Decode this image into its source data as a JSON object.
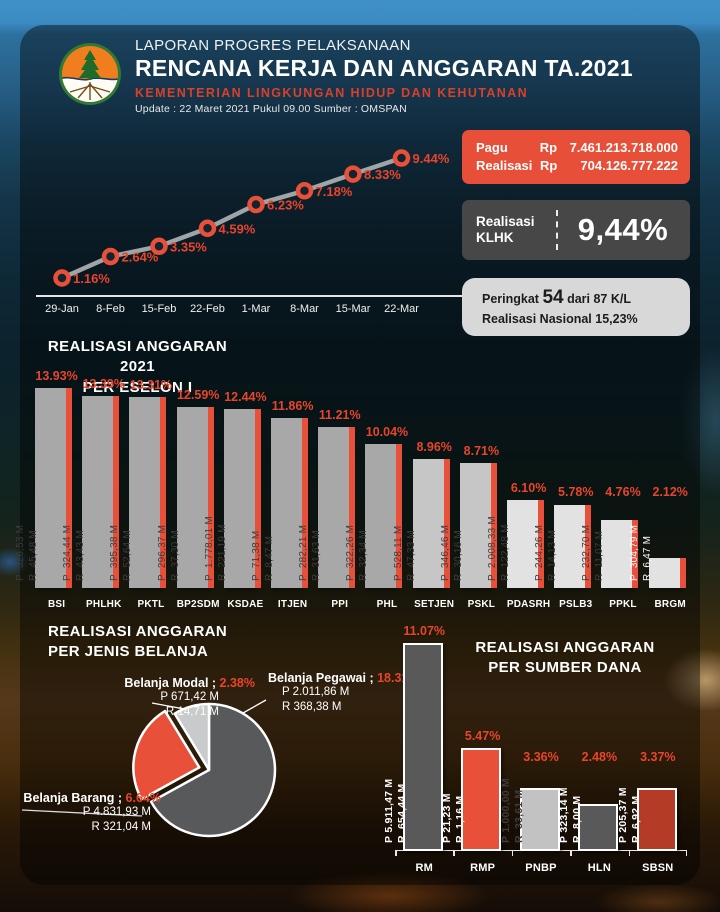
{
  "header": {
    "subtitle": "LAPORAN PROGRES PELAKSANAAN",
    "title": "RENCANA KERJA DAN ANGGARAN TA.2021",
    "ministry": "KEMENTERIAN  LINGKUNGAN  HIDUP  DAN  KEHUTANAN",
    "update_line": "Update : 22 Maret 2021 Pukul 09.00   Sumber : OMSPAN",
    "logo": "klhk-ministry-logo"
  },
  "summary": {
    "pagu_label": "Pagu",
    "pagu_currency": "Rp",
    "pagu_value": "7.461.213.718.000",
    "realisasi_label": "Realisasi",
    "realisasi_currency": "Rp",
    "realisasi_value": "704.126.777.222",
    "klhk_line1": "Realisasi",
    "klhk_line2": "KLHK",
    "klhk_percent": "9,44%",
    "rank_prefix": "Peringkat",
    "rank_value": "54",
    "rank_suffix": "dari 87 K/L",
    "national_line": "Realisasi  Nasional 15,23%"
  },
  "colors": {
    "accent": "#e8452c",
    "stripe": "#e8503a",
    "box_red": "#e84f38",
    "box_dark": "#474747",
    "box_light": "#d8d8d8"
  },
  "chart_data": [
    {
      "type": "line",
      "x": [
        "29-Jan",
        "8-Feb",
        "15-Feb",
        "22-Feb",
        "1-Mar",
        "8-Mar",
        "15-Mar",
        "22-Mar"
      ],
      "values": [
        1.16,
        2.64,
        3.35,
        4.59,
        6.23,
        7.18,
        8.33,
        9.44
      ],
      "labels": [
        "1.16%",
        "2.64%",
        "3.35%",
        "4.59%",
        "6.23%",
        "7.18%",
        "8.33%",
        "9.44%"
      ],
      "line_color": "#9fa4a6",
      "marker_color": "#e8503a",
      "label_color": "#e8452c",
      "xlabel": "",
      "ylabel": "",
      "grid": false,
      "legend": "none"
    },
    {
      "type": "bar",
      "title_line1": "REALISASI ANGGARAN  2021",
      "title_line2": "PER ESELON I",
      "p_prefix": "P",
      "r_prefix": "R",
      "items": [
        {
          "name": "BSI",
          "pct": 13.93,
          "pct_label": "13.93%",
          "pagu": "326,53 M",
          "realisasi": "45,48 M",
          "bar_color": "#a8a8a8",
          "text_color": "#3d3d3d"
        },
        {
          "name": "PHLHK",
          "pct": 13.39,
          "pct_label": "13.39%",
          "pagu": "324,44 M",
          "realisasi": "43,43 M",
          "bar_color": "#a8a8a8",
          "text_color": "#3d3d3d"
        },
        {
          "name": "PKTL",
          "pct": 13.31,
          "pct_label": "13.31%",
          "pagu": "395,38 M",
          "realisasi": "52,64 M",
          "bar_color": "#a8a8a8",
          "text_color": "#3d3d3d"
        },
        {
          "name": "BP2SDM",
          "pct": 12.59,
          "pct_label": "12.59%",
          "pagu": "296,37 M",
          "realisasi": "37,30 M",
          "bar_color": "#a8a8a8",
          "text_color": "#3d3d3d"
        },
        {
          "name": "KSDAE",
          "pct": 12.44,
          "pct_label": "12.44%",
          "pagu": "1.778,01 M",
          "realisasi": "221,19 M",
          "bar_color": "#a8a8a8",
          "text_color": "#3d3d3d"
        },
        {
          "name": "ITJEN",
          "pct": 11.86,
          "pct_label": "11.86%",
          "pagu": "71,38 M",
          "realisasi": "8,47 M",
          "bar_color": "#a8a8a8",
          "text_color": "#3d3d3d"
        },
        {
          "name": "PPI",
          "pct": 11.21,
          "pct_label": "11.21%",
          "pagu": "282,21 M",
          "realisasi": "31,63 M",
          "bar_color": "#a8a8a8",
          "text_color": "#3d3d3d"
        },
        {
          "name": "PHL",
          "pct": 10.04,
          "pct_label": "10.04%",
          "pagu": "322,26 M",
          "realisasi": "32,34 M",
          "bar_color": "#a8a8a8",
          "text_color": "#3d3d3d"
        },
        {
          "name": "SETJEN",
          "pct": 8.96,
          "pct_label": "8.96%",
          "pagu": "528,11 M",
          "realisasi": "47,33 M",
          "bar_color": "#c6c6c6",
          "text_color": "#3d3d3d"
        },
        {
          "name": "PSKL",
          "pct": 8.71,
          "pct_label": "8.71%",
          "pagu": "346,46 M",
          "realisasi": "30,16 M",
          "bar_color": "#c6c6c6",
          "text_color": "#3d3d3d"
        },
        {
          "name": "PDASRH",
          "pct": 6.1,
          "pct_label": "6.10%",
          "pagu": "2.008,33 M",
          "realisasi": "122,48 M",
          "bar_color": "#e2e2e2",
          "text_color": "#3d3d3d"
        },
        {
          "name": "PSLB3",
          "pct": 5.78,
          "pct_label": "5.78%",
          "pagu": "244,26 M",
          "realisasi": "14,13 M",
          "bar_color": "#e2e2e2",
          "text_color": "#3d3d3d"
        },
        {
          "name": "PPKL",
          "pct": 4.76,
          "pct_label": "4.76%",
          "pagu": "232,70 M",
          "realisasi": "11,07 M",
          "bar_color": "#e2e2e2",
          "text_color": "#3d3d3d"
        },
        {
          "name": "BRGM",
          "pct": 2.12,
          "pct_label": "2.12%",
          "pagu": "304,79 M",
          "realisasi": "6,47 M",
          "bar_color": "#e2e2e2",
          "text_color": "#ffffff"
        }
      ]
    },
    {
      "type": "pie",
      "title_line1": "REALISASI ANGGARAN",
      "title_line2": "PER JENIS BELANJA",
      "sep": " ; ",
      "p_prefix": "P",
      "r_prefix": "R",
      "slices": [
        {
          "name": "Belanja Pegawai",
          "pct_label": "18.31%",
          "share": 18.31,
          "pagu": "2.011,86  M",
          "realisasi": "368,38  M",
          "color": "#58595b"
        },
        {
          "name": "Belanja Barang",
          "pct_label": "6.64%",
          "share": 6.64,
          "pagu": "4.831,93  M",
          "realisasi": "321,04  M",
          "color": "#e8503a",
          "exploded": true
        },
        {
          "name": "Belanja Modal",
          "pct_label": "2.38%",
          "share": 2.38,
          "pagu": "671,42  M",
          "realisasi": "14,71  M",
          "color": "#c9cacb"
        }
      ]
    },
    {
      "type": "bar",
      "title_line1": "REALISASI ANGGARAN",
      "title_line2": "PER SUMBER DANA",
      "p_prefix": "P",
      "r_prefix": "R",
      "items": [
        {
          "name": "RM",
          "pct": 11.07,
          "pct_label": "11.07%",
          "pagu": "5.911,47 M",
          "realisasi": "654,44 M",
          "bar_color": "#595959",
          "text_color": "#ffffff"
        },
        {
          "name": "RMP",
          "pct": 5.47,
          "pct_label": "5.47%",
          "pagu": "21,23 M",
          "realisasi": "1,16 M",
          "bar_color": "#e8503a",
          "text_color": "#ffffff"
        },
        {
          "name": "PNBP",
          "pct": 3.36,
          "pct_label": "3.36%",
          "pagu": "1.000,00 M",
          "realisasi": "33,61 M",
          "bar_color": "#c2c2c2",
          "text_color": "#3d3d3d"
        },
        {
          "name": "HLN",
          "pct": 2.48,
          "pct_label": "2.48%",
          "pagu": "323,14 M",
          "realisasi": "8,00 M",
          "bar_color": "#595959",
          "text_color": "#ffffff"
        },
        {
          "name": "SBSN",
          "pct": 3.37,
          "pct_label": "3.37%",
          "pagu": "205,37 M",
          "realisasi": "6,92 M",
          "bar_color": "#b43b25",
          "text_color": "#ffffff"
        }
      ]
    }
  ]
}
